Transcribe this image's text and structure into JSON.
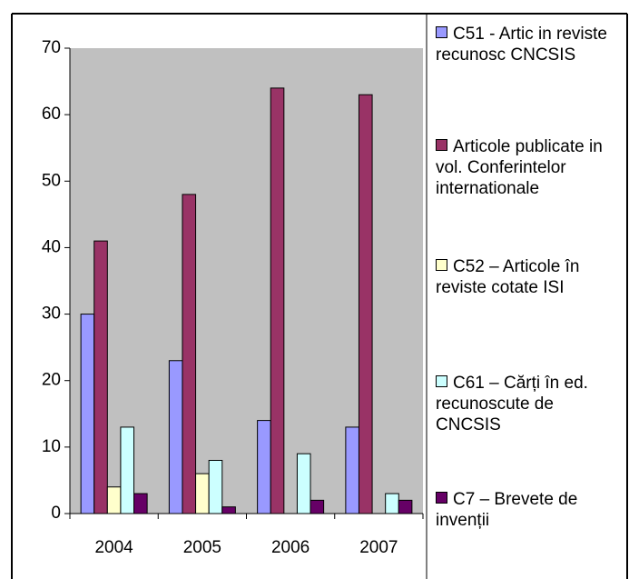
{
  "chart_data": {
    "type": "bar",
    "categories": [
      "2004",
      "2005",
      "2006",
      "2007"
    ],
    "series": [
      {
        "name": "C51 - Artic in reviste recunosc CNCSIS",
        "color": "#9999ff",
        "values": [
          30,
          23,
          14,
          13
        ]
      },
      {
        "name": "Articole publicate in vol. Conferintelor internationale",
        "color": "#993366",
        "values": [
          41,
          48,
          64,
          63
        ]
      },
      {
        "name": "C52 – Articole în reviste cotate ISI",
        "color": "#ffffcc",
        "values": [
          4,
          6,
          0,
          0
        ]
      },
      {
        "name": "C61 – Cărți în ed. recunoscute de CNCSIS",
        "color": "#ccffff",
        "values": [
          13,
          8,
          9,
          3
        ]
      },
      {
        "name": "C7 – Brevete de invenții",
        "color": "#660066",
        "values": [
          3,
          1,
          2,
          2
        ]
      }
    ],
    "ylim": [
      0,
      70
    ],
    "yticks": [
      0,
      10,
      20,
      30,
      40,
      50,
      60,
      70
    ],
    "plot_background": "#c0c0c0",
    "legend": "right"
  }
}
